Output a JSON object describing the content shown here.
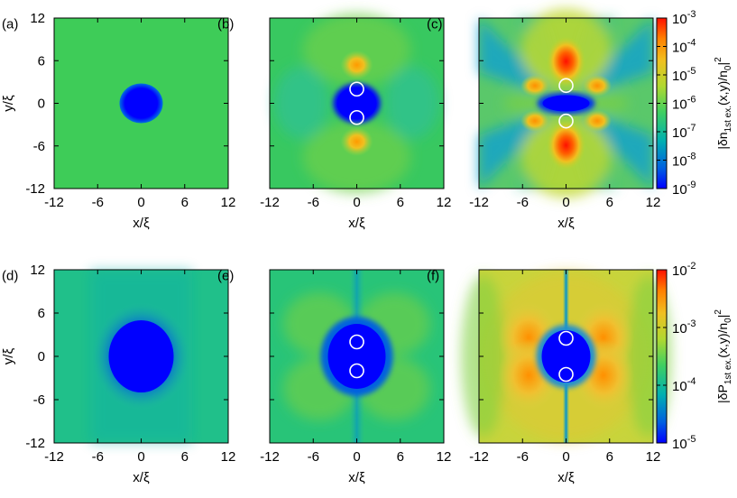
{
  "chart_data": {
    "type": "heatmap",
    "panels": [
      {
        "label": "(a)",
        "row": 0,
        "col": 0,
        "vortex_positions": [],
        "show_ylabel": true
      },
      {
        "label": "(b)",
        "row": 0,
        "col": 1,
        "vortex_positions": [
          [
            0,
            2
          ],
          [
            0,
            -2
          ]
        ],
        "show_ylabel": false
      },
      {
        "label": "(c)",
        "row": 0,
        "col": 2,
        "vortex_positions": [
          [
            0,
            2.5
          ],
          [
            0,
            -2.5
          ]
        ],
        "show_ylabel": false
      },
      {
        "label": "(d)",
        "row": 1,
        "col": 0,
        "vortex_positions": [],
        "show_ylabel": true
      },
      {
        "label": "(e)",
        "row": 1,
        "col": 1,
        "vortex_positions": [
          [
            0,
            2
          ],
          [
            0,
            -2
          ]
        ],
        "show_ylabel": false
      },
      {
        "label": "(f)",
        "row": 1,
        "col": 2,
        "vortex_positions": [
          [
            0,
            2.5
          ],
          [
            0,
            -2.5
          ]
        ],
        "show_ylabel": false
      }
    ],
    "xlabel": "x/ξ",
    "ylabel": "y/ξ",
    "xlim": [
      -12,
      12
    ],
    "ylim": [
      -12,
      12
    ],
    "xticks": [
      "-12",
      "-6",
      "0",
      "6",
      "12"
    ],
    "yticks": [
      "12",
      "6",
      "0",
      "-6",
      "-12"
    ],
    "colorbars": [
      {
        "row": 0,
        "label_parts": [
          "|δn",
          "1st ex.",
          "(x,y)/n",
          "0",
          "|",
          "2"
        ],
        "scale": "log",
        "range": [
          1e-09,
          0.001
        ],
        "ticks": [
          {
            "base": "10",
            "exp": "-3"
          },
          {
            "base": "10",
            "exp": "-4"
          },
          {
            "base": "10",
            "exp": "-5"
          },
          {
            "base": "10",
            "exp": "-6"
          },
          {
            "base": "10",
            "exp": "-7"
          },
          {
            "base": "10",
            "exp": "-8"
          },
          {
            "base": "10",
            "exp": "-9"
          }
        ]
      },
      {
        "row": 1,
        "label_parts": [
          "|δP",
          "1st ex.",
          "(x,y)/n",
          "0",
          "|",
          "2"
        ],
        "scale": "log",
        "range": [
          1e-05,
          0.01
        ],
        "ticks": [
          {
            "base": "10",
            "exp": "-2"
          },
          {
            "base": "10",
            "exp": "-3"
          },
          {
            "base": "10",
            "exp": "-4"
          },
          {
            "base": "10",
            "exp": "-5"
          }
        ]
      }
    ],
    "colormap": [
      "#0000ff",
      "#0050e0",
      "#00a0c0",
      "#20c080",
      "#60d040",
      "#b0d830",
      "#f0c020",
      "#ff8000",
      "#ff2000"
    ]
  }
}
